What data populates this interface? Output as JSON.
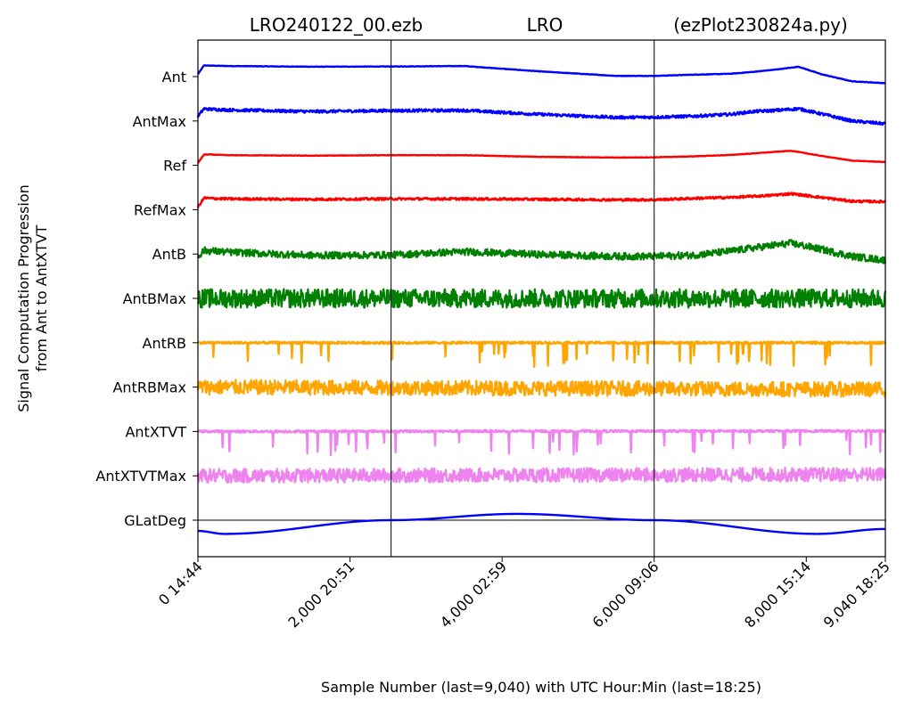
{
  "chart_data": {
    "type": "line",
    "titles": {
      "left": "LRO240122_00.ezb",
      "center": "LRO",
      "right": "(ezPlot230824a.py)"
    },
    "xlabel": "Sample Number (last=9,040) with UTC Hour:Min (last=18:25)",
    "ylabel_line1": "Signal Computation Progression",
    "ylabel_line2": "from Ant to AntXTVT",
    "xlim": [
      0,
      9040
    ],
    "x_ticks": [
      {
        "x": 0,
        "label": "0  14:44"
      },
      {
        "x": 2000,
        "label": "2,000  20:51"
      },
      {
        "x": 4000,
        "label": "4,000  02:59"
      },
      {
        "x": 6000,
        "label": "6,000  09:06"
      },
      {
        "x": 8000,
        "label": "8,000  15:14"
      },
      {
        "x": 9040,
        "label": "9,040  18:25"
      }
    ],
    "vertical_markers": [
      2540,
      6000
    ],
    "series": [
      {
        "name": "Ant",
        "color": "#0000ff",
        "lane": 0,
        "noise": 0.01,
        "spikes": 0,
        "profile": [
          [
            0,
            0.6
          ],
          [
            80,
            0.98
          ],
          [
            120,
            0.97
          ],
          [
            400,
            0.95
          ],
          [
            1500,
            0.92
          ],
          [
            2540,
            0.93
          ],
          [
            3500,
            0.95
          ],
          [
            4500,
            0.72
          ],
          [
            5500,
            0.53
          ],
          [
            6000,
            0.53
          ],
          [
            6500,
            0.58
          ],
          [
            7000,
            0.62
          ],
          [
            7300,
            0.7
          ],
          [
            7600,
            0.8
          ],
          [
            7900,
            0.92
          ],
          [
            8200,
            0.6
          ],
          [
            8600,
            0.3
          ],
          [
            9040,
            0.22
          ]
        ]
      },
      {
        "name": "AntMax",
        "color": "#0000ff",
        "lane": 1,
        "noise": 0.06,
        "spikes": 0,
        "profile": [
          [
            0,
            0.7
          ],
          [
            80,
            1.02
          ],
          [
            150,
            1.0
          ],
          [
            400,
            0.97
          ],
          [
            1500,
            0.9
          ],
          [
            2540,
            0.94
          ],
          [
            3500,
            0.95
          ],
          [
            4500,
            0.78
          ],
          [
            5500,
            0.65
          ],
          [
            6000,
            0.66
          ],
          [
            6500,
            0.7
          ],
          [
            7000,
            0.78
          ],
          [
            7300,
            0.9
          ],
          [
            7600,
            0.95
          ],
          [
            7900,
            1.02
          ],
          [
            8200,
            0.8
          ],
          [
            8600,
            0.5
          ],
          [
            9040,
            0.38
          ]
        ]
      },
      {
        "name": "Ref",
        "color": "#ff0000",
        "lane": 2,
        "noise": 0.01,
        "spikes": 0,
        "profile": [
          [
            0,
            0.6
          ],
          [
            80,
            0.96
          ],
          [
            150,
            0.96
          ],
          [
            400,
            0.93
          ],
          [
            1500,
            0.91
          ],
          [
            2540,
            0.93
          ],
          [
            3500,
            0.93
          ],
          [
            4500,
            0.86
          ],
          [
            5500,
            0.83
          ],
          [
            6000,
            0.84
          ],
          [
            6500,
            0.88
          ],
          [
            7000,
            0.94
          ],
          [
            7500,
            1.05
          ],
          [
            7800,
            1.12
          ],
          [
            8200,
            0.9
          ],
          [
            8600,
            0.7
          ],
          [
            9040,
            0.64
          ]
        ]
      },
      {
        "name": "RefMax",
        "color": "#ff0000",
        "lane": 3,
        "noise": 0.05,
        "spikes": 0,
        "profile": [
          [
            0,
            0.6
          ],
          [
            80,
            1.0
          ],
          [
            150,
            0.98
          ],
          [
            400,
            0.96
          ],
          [
            1500,
            0.94
          ],
          [
            2540,
            0.96
          ],
          [
            3500,
            0.96
          ],
          [
            4500,
            0.94
          ],
          [
            5500,
            0.92
          ],
          [
            6000,
            0.92
          ],
          [
            6500,
            0.98
          ],
          [
            7000,
            1.02
          ],
          [
            7500,
            1.1
          ],
          [
            7800,
            1.18
          ],
          [
            8200,
            1.02
          ],
          [
            8600,
            0.86
          ],
          [
            9040,
            0.84
          ]
        ]
      },
      {
        "name": "AntB",
        "color": "#008000",
        "lane": 4,
        "noise": 0.15,
        "spikes": 0,
        "profile": [
          [
            0,
            0.4
          ],
          [
            80,
            0.65
          ],
          [
            400,
            0.58
          ],
          [
            1500,
            0.44
          ],
          [
            2540,
            0.46
          ],
          [
            3500,
            0.6
          ],
          [
            4500,
            0.48
          ],
          [
            5500,
            0.4
          ],
          [
            6000,
            0.4
          ],
          [
            6500,
            0.45
          ],
          [
            7000,
            0.62
          ],
          [
            7400,
            0.8
          ],
          [
            7800,
            0.96
          ],
          [
            8200,
            0.7
          ],
          [
            8600,
            0.4
          ],
          [
            9040,
            0.24
          ]
        ]
      },
      {
        "name": "AntBMax",
        "color": "#008000",
        "lane": 5,
        "noise": 0.4,
        "spikes": 0,
        "profile": [
          [
            0,
            0.5
          ],
          [
            9040,
            0.5
          ]
        ]
      },
      {
        "name": "AntRB",
        "color": "#ffa500",
        "lane": 6,
        "noise": 0.05,
        "spikes": 0.03,
        "profile": [
          [
            0,
            0.5
          ],
          [
            9040,
            0.5
          ]
        ]
      },
      {
        "name": "AntRBMax",
        "color": "#ffa500",
        "lane": 7,
        "noise": 0.32,
        "spikes": 0,
        "profile": [
          [
            0,
            0.5
          ],
          [
            9040,
            0.4
          ]
        ]
      },
      {
        "name": "AntXTVT",
        "color": "#ee82ee",
        "lane": 8,
        "noise": 0.05,
        "spikes": 0.03,
        "profile": [
          [
            0,
            0.5
          ],
          [
            9040,
            0.52
          ]
        ]
      },
      {
        "name": "AntXTVTMax",
        "color": "#ee82ee",
        "lane": 9,
        "noise": 0.3,
        "spikes": 0,
        "profile": [
          [
            0,
            0.5
          ],
          [
            9040,
            0.56
          ]
        ]
      },
      {
        "name": "GLatDeg",
        "color": "#0000ff",
        "lane": 10,
        "noise": 0,
        "spikes": 0,
        "curve": "glat"
      }
    ],
    "glatdeg": {
      "baseline": 0,
      "min_x": 350,
      "min_value": -0.7,
      "zero_x1": 2540,
      "max_x": 4200,
      "max_value": 0.32,
      "zero_x2": 6000,
      "min2_x": 8150,
      "end_value": -0.45
    }
  }
}
